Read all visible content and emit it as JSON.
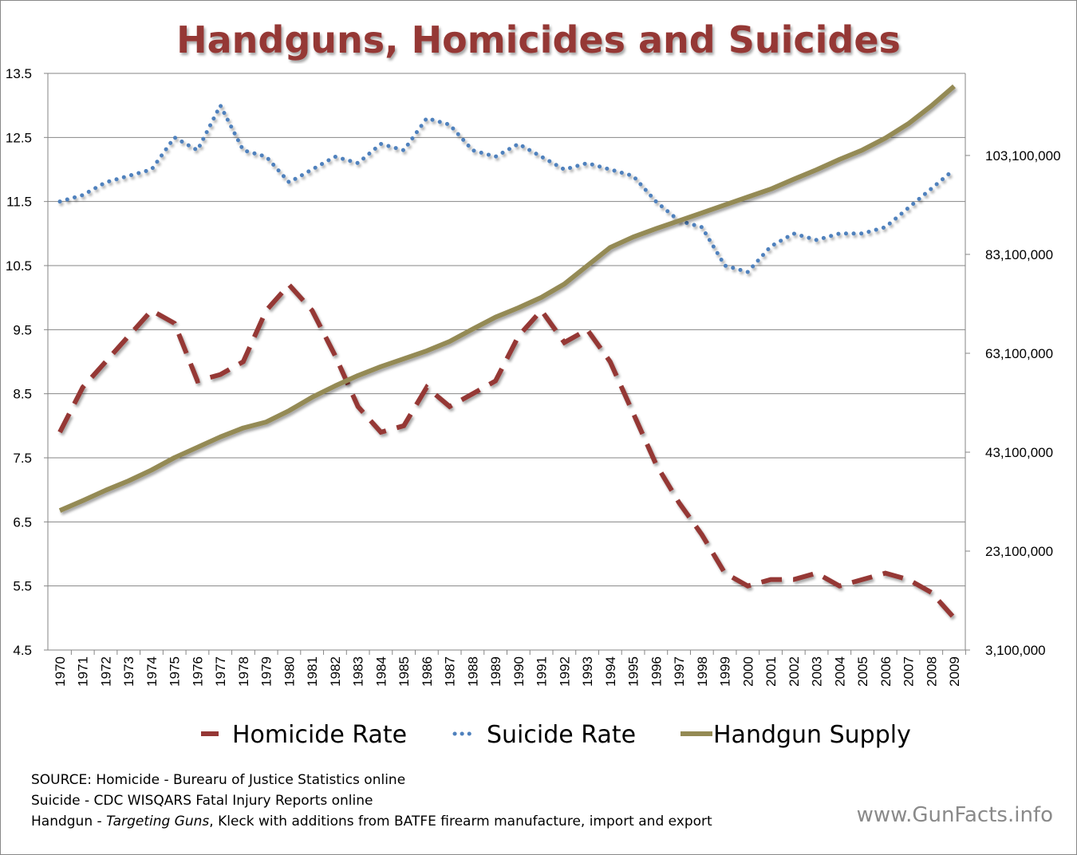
{
  "chart_data": {
    "type": "line",
    "title": "Handguns, Homicides and Suicides",
    "x": [
      1970,
      1971,
      1972,
      1973,
      1974,
      1975,
      1976,
      1977,
      1978,
      1979,
      1980,
      1981,
      1982,
      1983,
      1984,
      1985,
      1986,
      1987,
      1988,
      1989,
      1990,
      1991,
      1992,
      1993,
      1994,
      1995,
      1996,
      1997,
      1998,
      1999,
      2000,
      2001,
      2002,
      2003,
      2004,
      2005,
      2006,
      2007,
      2008,
      2009
    ],
    "y_left": {
      "ylim": [
        4.5,
        13.5
      ],
      "ticks": [
        "13.5",
        "12.5",
        "11.5",
        "10.5",
        "9.5",
        "8.5",
        "7.5",
        "6.5",
        "5.5",
        "4.5"
      ]
    },
    "y_right": {
      "ylim": [
        3100000,
        119700000
      ],
      "ticks": [
        "103,100,000",
        "83,100,000",
        "63,100,000",
        "43,100,000",
        "23,100,000",
        "3,100,000"
      ]
    },
    "grid": true,
    "legend_position": "bottom",
    "series": [
      {
        "name": "Homicide Rate",
        "axis": "left",
        "style": "dashed",
        "color": "#953735",
        "values": [
          7.9,
          8.6,
          9.0,
          9.4,
          9.8,
          9.6,
          8.7,
          8.8,
          9.0,
          9.8,
          10.2,
          9.8,
          9.1,
          8.3,
          7.9,
          8.0,
          8.6,
          8.3,
          8.5,
          8.7,
          9.4,
          9.8,
          9.3,
          9.5,
          9.0,
          8.2,
          7.4,
          6.8,
          6.3,
          5.7,
          5.5,
          5.6,
          5.6,
          5.7,
          5.5,
          5.6,
          5.7,
          5.6,
          5.4,
          5.0
        ]
      },
      {
        "name": "Suicide Rate",
        "axis": "left",
        "style": "dotted",
        "color": "#4f81bd",
        "values": [
          11.5,
          11.6,
          11.8,
          11.9,
          12.0,
          12.5,
          12.3,
          13.0,
          12.3,
          12.2,
          11.8,
          12.0,
          12.2,
          12.1,
          12.4,
          12.3,
          12.8,
          12.7,
          12.3,
          12.2,
          12.4,
          12.2,
          12.0,
          12.1,
          12.0,
          11.9,
          11.5,
          11.2,
          11.1,
          10.5,
          10.4,
          10.8,
          11.0,
          10.9,
          11.0,
          11.0,
          11.1,
          11.4,
          11.7,
          12.0
        ]
      },
      {
        "name": "Handgun Supply",
        "axis": "right",
        "style": "solid",
        "color": "#948a54",
        "values": [
          31300000,
          33300000,
          35400000,
          37300000,
          39500000,
          42000000,
          44100000,
          46200000,
          48000000,
          49200000,
          51500000,
          54200000,
          56500000,
          58600000,
          60400000,
          62000000,
          63600000,
          65500000,
          68000000,
          70400000,
          72300000,
          74400000,
          77100000,
          80800000,
          84500000,
          86600000,
          88300000,
          89900000,
          91500000,
          93100000,
          94700000,
          96300000,
          98300000,
          100200000,
          102300000,
          104200000,
          106600000,
          109500000,
          113100000,
          117100000
        ]
      }
    ]
  },
  "footer": {
    "line1": "SOURCE: Homicide - Burearu of Justice Statistics online",
    "line2": "Suicide - CDC WISQARS Fatal Injury Reports online",
    "line3_a": "Handgun - ",
    "line3_b": "Targeting Guns",
    "line3_c": ", Kleck with additions from BATFE firearm manufacture, import and export",
    "brand": "www.GunFacts.info"
  }
}
